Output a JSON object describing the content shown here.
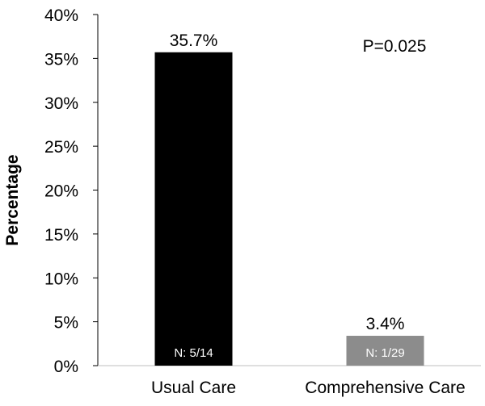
{
  "chart_data": {
    "type": "bar",
    "categories": [
      "Usual Care",
      "Comprehensive Care"
    ],
    "values": [
      35.7,
      3.4
    ],
    "value_labels": [
      "35.7%",
      "3.4%"
    ],
    "n_labels": [
      "N: 5/14",
      "N: 1/29"
    ],
    "bar_colors": [
      "#000000",
      "#8c8c8c"
    ],
    "xlabel": "",
    "ylabel": "Percentage",
    "ylim": [
      0,
      40
    ],
    "yticks": [
      0,
      5,
      10,
      15,
      20,
      25,
      30,
      35,
      40
    ],
    "ytick_labels": [
      "0%",
      "5%",
      "10%",
      "15%",
      "20%",
      "25%",
      "30%",
      "35%",
      "40%"
    ],
    "annotation": "P=0.025",
    "grid": false,
    "legend": "none"
  }
}
